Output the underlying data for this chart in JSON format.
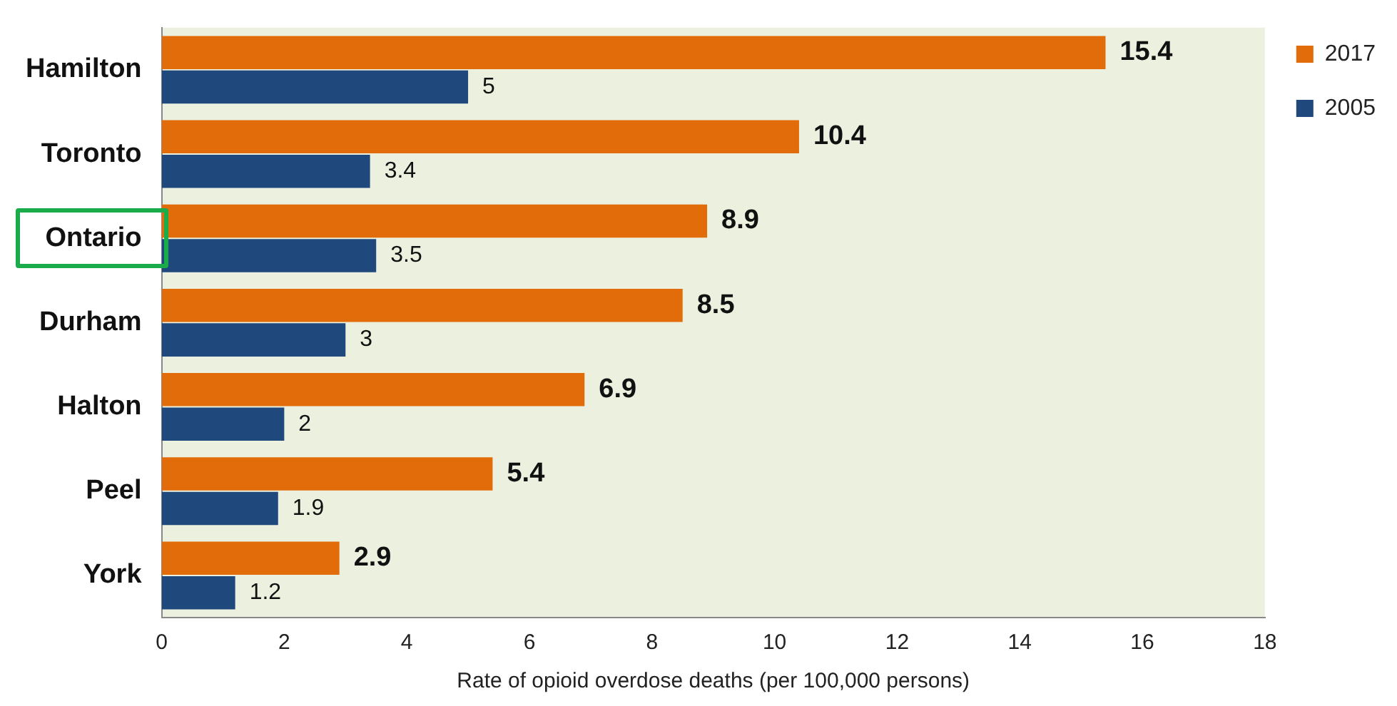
{
  "chart_data": {
    "type": "bar",
    "orientation": "horizontal",
    "xlabel": "Rate of opioid overdose deaths (per 100,000 persons)",
    "categories": [
      "Hamilton",
      "Toronto",
      "Ontario",
      "Durham",
      "Halton",
      "Peel",
      "York"
    ],
    "series": [
      {
        "name": "2017",
        "color": "#e36c0a",
        "values": [
          15.4,
          10.4,
          8.9,
          8.5,
          6.9,
          5.4,
          2.9
        ]
      },
      {
        "name": "2005",
        "color": "#1f497d",
        "values": [
          5,
          3.4,
          3.5,
          3,
          2,
          1.9,
          1.2
        ]
      }
    ],
    "xlim": [
      0,
      18
    ],
    "xticks": [
      0,
      2,
      4,
      6,
      8,
      10,
      12,
      14,
      16,
      18
    ],
    "grid": false,
    "legend": "right",
    "data_labels": true
  }
}
